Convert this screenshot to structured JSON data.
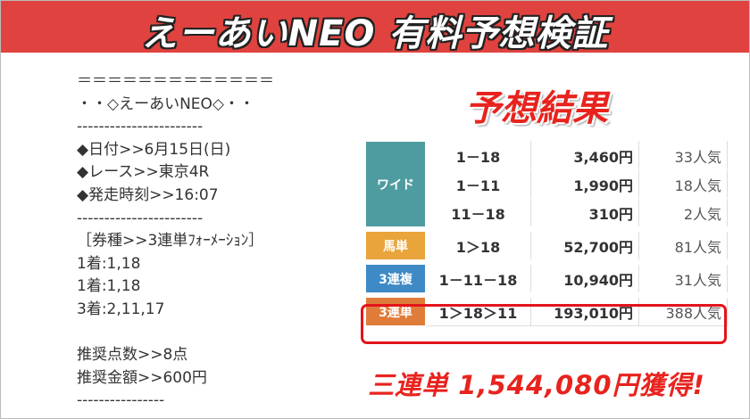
{
  "header": {
    "title": "えーあいNEO 有料予想検証"
  },
  "prediction": {
    "lines": [
      "＝＝＝＝＝＝＝＝＝＝＝＝＝",
      "・・◇えーあいNEO◇・・",
      "-----------------------",
      "◆日付>>6月15日(日)",
      "◆レース>>東京4R",
      "◆発走時刻>>16:07",
      "-----------------------",
      "［券種>>3連単ﾌｫｰﾒｰｼｮﾝ］",
      "1着:1,18",
      "1着:1,18",
      "3着:2,11,17",
      "推奨点数>>8点",
      "推奨金額>>600円",
      "----------------"
    ]
  },
  "result": {
    "title": "予想結果",
    "table": {
      "groups": [
        {
          "kind": "ワイド",
          "rows": [
            [
              "1－18",
              "3,460円",
              "33人気"
            ],
            [
              "1－11",
              "1,990円",
              "18人気"
            ],
            [
              "11－18",
              "310円",
              "2人気"
            ]
          ]
        },
        {
          "kind": "馬単",
          "rows": [
            [
              "1＞18",
              "52,700円",
              "81人気"
            ]
          ]
        },
        {
          "kind": "3連複",
          "rows": [
            [
              "1－11－18",
              "10,940円",
              "31人気"
            ]
          ]
        },
        {
          "kind": "3連単",
          "rows": [
            [
              "1＞18＞11",
              "193,010円",
              "388人気"
            ]
          ]
        }
      ]
    },
    "summary": "三連単 1,544,080円獲得!"
  }
}
